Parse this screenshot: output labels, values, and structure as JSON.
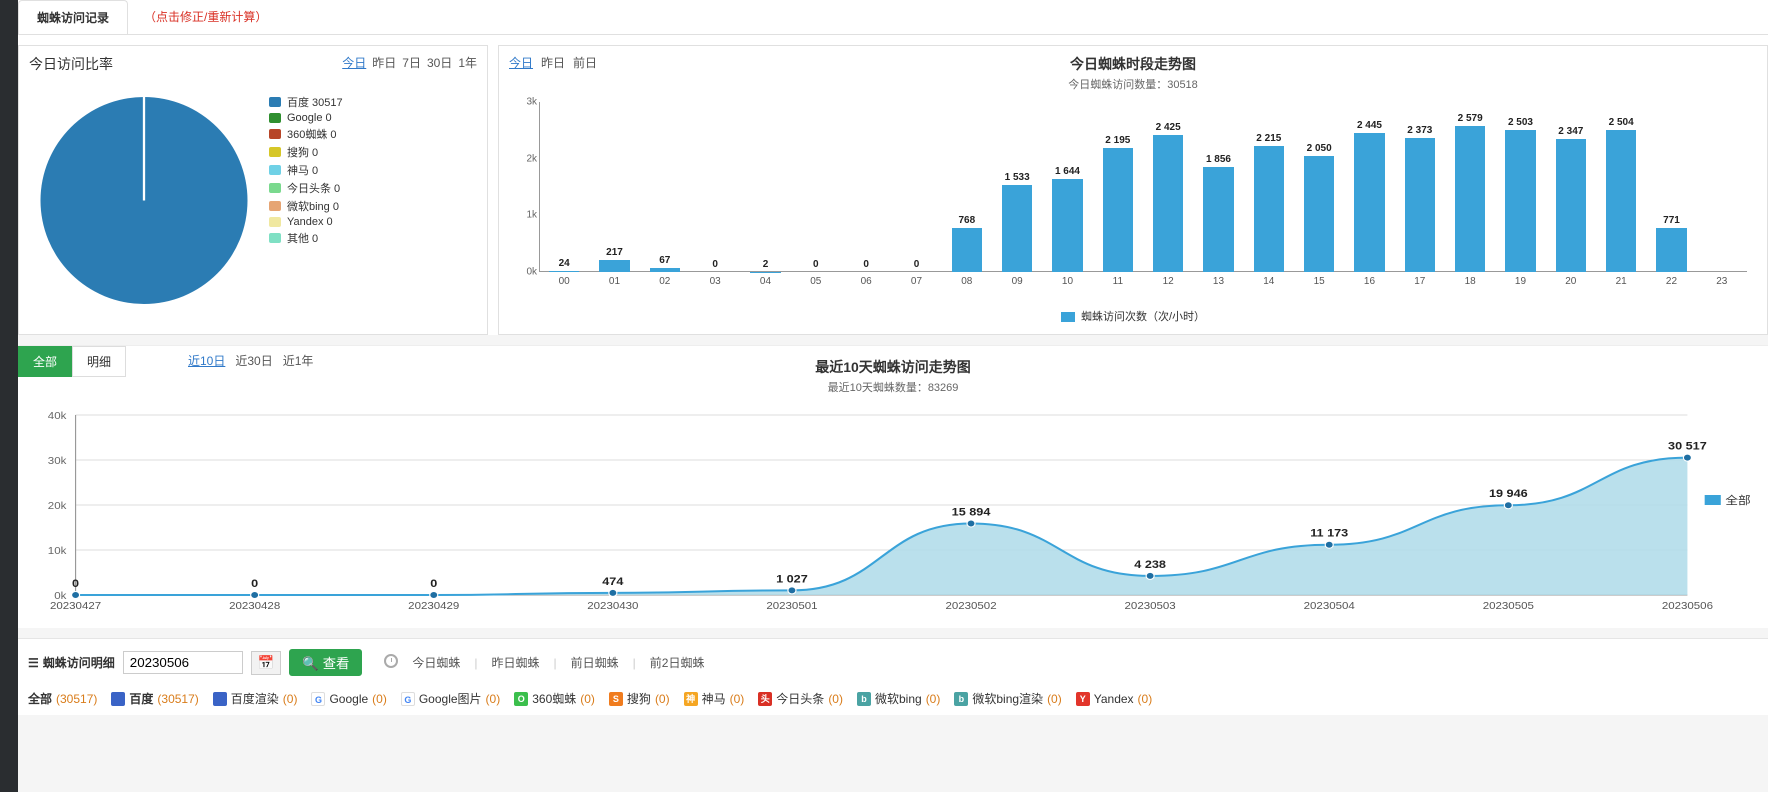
{
  "tabs": {
    "main": "蜘蛛访问记录",
    "warn": "（点击修正/重新计算）"
  },
  "pie_panel": {
    "title": "今日访问比率",
    "ranges": [
      "今日",
      "昨日",
      "7日",
      "30日",
      "1年"
    ],
    "active_range": 0,
    "slice_color": "#2b7cb3",
    "background": "#ffffff",
    "legend": [
      {
        "label": "百度 30517",
        "color": "#2b7cb3"
      },
      {
        "label": "Google 0",
        "color": "#2f8f2f"
      },
      {
        "label": "360蜘蛛 0",
        "color": "#b74528"
      },
      {
        "label": "搜狗 0",
        "color": "#d6c728"
      },
      {
        "label": "神马 0",
        "color": "#6fd1e6"
      },
      {
        "label": "今日头条 0",
        "color": "#7ad98e"
      },
      {
        "label": "微软bing 0",
        "color": "#e6a574"
      },
      {
        "label": "Yandex 0",
        "color": "#f0e8a0"
      },
      {
        "label": "其他 0",
        "color": "#7fe0c4"
      }
    ]
  },
  "bar_panel": {
    "ranges": [
      "今日",
      "昨日",
      "前日"
    ],
    "active_range": 0,
    "title": "今日蜘蛛时段走势图",
    "subtitle": "今日蜘蛛访问数量：30518",
    "ymax": 3000,
    "ytick_step": 1000,
    "yticks": [
      "0k",
      "1k",
      "2k",
      "3k"
    ],
    "bar_color": "#3aa3d9",
    "legend": "蜘蛛访问次数（次/小时）",
    "hours": [
      "00",
      "01",
      "02",
      "03",
      "04",
      "05",
      "06",
      "07",
      "08",
      "09",
      "10",
      "11",
      "12",
      "13",
      "14",
      "15",
      "16",
      "17",
      "18",
      "19",
      "20",
      "21",
      "22",
      "23"
    ],
    "values": [
      24,
      217,
      67,
      0,
      2,
      0,
      0,
      0,
      768,
      1533,
      1644,
      2195,
      2425,
      1856,
      2215,
      2050,
      2445,
      2373,
      2579,
      2503,
      2347,
      2504,
      771,
      0
    ],
    "labels": [
      "24",
      "217",
      "67",
      "0",
      "2",
      "0",
      "0",
      "0",
      "768",
      "1 533",
      "1 644",
      "2 195",
      "2 425",
      "1 856",
      "2 215",
      "2 050",
      "2 445",
      "2 373",
      "2 579",
      "2 503",
      "2 347",
      "2 504",
      "771",
      ""
    ]
  },
  "trend_panel": {
    "tabs": [
      "全部",
      "明细"
    ],
    "active_tab": 0,
    "ranges": [
      "近10日",
      "近30日",
      "近1年"
    ],
    "active_range": 0,
    "title": "最近10天蜘蛛访问走势图",
    "subtitle": "最近10天蜘蛛数量：83269",
    "legend": "全部",
    "legend_color": "#3aa3d9",
    "ymax": 40000,
    "yticks": [
      "0k",
      "10k",
      "20k",
      "30k",
      "40k"
    ],
    "fill_color": "#aedbe9",
    "line_color": "#3aa3d9",
    "marker_color": "#1f6fa3",
    "dates": [
      "20230427",
      "20230428",
      "20230429",
      "20230430",
      "20230501",
      "20230502",
      "20230503",
      "20230504",
      "20230505",
      "20230506"
    ],
    "values": [
      0,
      0,
      0,
      474,
      1027,
      15894,
      4238,
      11173,
      19946,
      30517
    ],
    "labels": [
      "0",
      "0",
      "0",
      "474",
      "1 027",
      "15 894",
      "4 238",
      "11 173",
      "19 946",
      "30 517"
    ]
  },
  "detail_bar": {
    "header": "蜘蛛访问明细",
    "date_value": "20230506",
    "look_btn": "查看",
    "quick": [
      "今日蜘蛛",
      "昨日蜘蛛",
      "前日蜘蛛",
      "前2日蜘蛛"
    ]
  },
  "filters": {
    "items": [
      {
        "icon": null,
        "name": "全部",
        "count": "(30517)",
        "icon_bg": null
      },
      {
        "icon": "paw",
        "name": "百度",
        "count": "(30517)",
        "icon_bg": "#3a63c6"
      },
      {
        "icon": "paw",
        "name": "百度渲染",
        "count": "(0)",
        "icon_bg": "#3a63c6"
      },
      {
        "icon": "G",
        "name": "Google",
        "count": "(0)",
        "icon_bg": "#ffffff"
      },
      {
        "icon": "G",
        "name": "Google图片",
        "count": "(0)",
        "icon_bg": "#ffffff"
      },
      {
        "icon": "O",
        "name": "360蜘蛛",
        "count": "(0)",
        "icon_bg": "#3bbf4c"
      },
      {
        "icon": "S",
        "name": "搜狗",
        "count": "(0)",
        "icon_bg": "#f07c1e"
      },
      {
        "icon": "神",
        "name": "神马",
        "count": "(0)",
        "icon_bg": "#f5a623"
      },
      {
        "icon": "头",
        "name": "今日头条",
        "count": "(0)",
        "icon_bg": "#d93025"
      },
      {
        "icon": "b",
        "name": "微软bing",
        "count": "(0)",
        "icon_bg": "#4aa3a3"
      },
      {
        "icon": "b",
        "name": "微软bing渲染",
        "count": "(0)",
        "icon_bg": "#4aa3a3"
      },
      {
        "icon": "Y",
        "name": "Yandex",
        "count": "(0)",
        "icon_bg": "#e2352b"
      }
    ]
  }
}
